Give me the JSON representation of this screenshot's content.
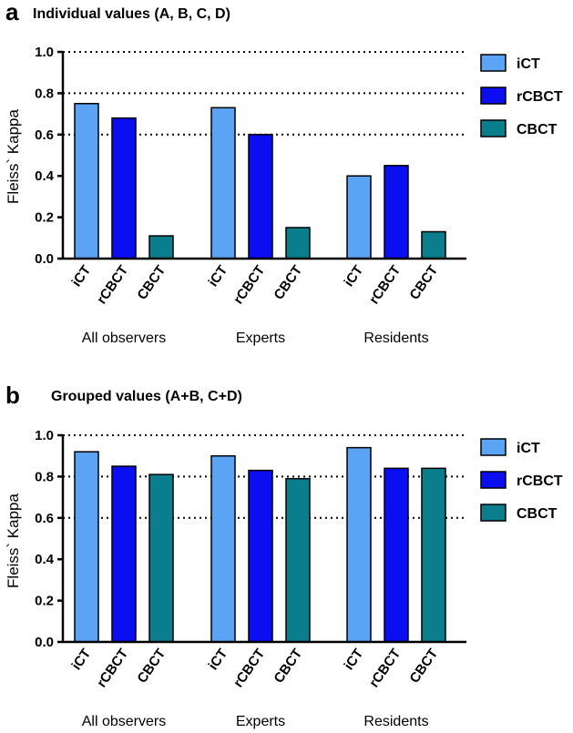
{
  "chart_data": [
    {
      "panel": "a",
      "type": "bar",
      "title": "Individual values (A, B, C, D)",
      "ylabel": "Fleiss` Kappa",
      "xlabel": "",
      "ylim": [
        0,
        1.0
      ],
      "yticks": [
        "0.0",
        "0.2",
        "0.4",
        "0.6",
        "0.8",
        "1.0"
      ],
      "ytick_values": [
        0,
        0.2,
        0.4,
        0.6,
        0.8,
        1.0
      ],
      "reference_lines": [
        0.6,
        0.8,
        1.0
      ],
      "groups": [
        "All observers",
        "Experts",
        "Residents"
      ],
      "categories": [
        "iCT",
        "rCBCT",
        "CBCT"
      ],
      "series": [
        {
          "name": "iCT",
          "color": "#5aa3f5",
          "values": [
            0.75,
            0.73,
            0.4
          ]
        },
        {
          "name": "rCBCT",
          "color": "#0a0ef0",
          "values": [
            0.68,
            0.6,
            0.45
          ]
        },
        {
          "name": "CBCT",
          "color": "#0a7e8c",
          "values": [
            0.11,
            0.15,
            0.13
          ]
        }
      ],
      "legend": "right"
    },
    {
      "panel": "b",
      "type": "bar",
      "title": "Grouped values (A+B, C+D)",
      "ylabel": "Fleiss` Kappa",
      "xlabel": "",
      "ylim": [
        0,
        1.0
      ],
      "yticks": [
        "0.0",
        "0.2",
        "0.4",
        "0.6",
        "0.8",
        "1.0"
      ],
      "ytick_values": [
        0,
        0.2,
        0.4,
        0.6,
        0.8,
        1.0
      ],
      "reference_lines": [
        0.6,
        0.8,
        1.0
      ],
      "groups": [
        "All observers",
        "Experts",
        "Residents"
      ],
      "categories": [
        "iCT",
        "rCBCT",
        "CBCT"
      ],
      "series": [
        {
          "name": "iCT",
          "color": "#5aa3f5",
          "values": [
            0.92,
            0.9,
            0.94
          ]
        },
        {
          "name": "rCBCT",
          "color": "#0a0ef0",
          "values": [
            0.85,
            0.83,
            0.84
          ]
        },
        {
          "name": "CBCT",
          "color": "#0a7e8c",
          "values": [
            0.81,
            0.79,
            0.84
          ]
        }
      ],
      "legend": "right"
    }
  ]
}
